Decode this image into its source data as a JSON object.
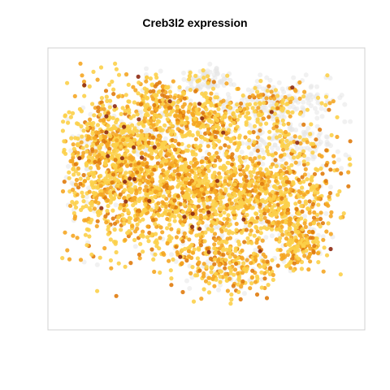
{
  "chart_data": {
    "type": "scatter",
    "title": "Creb3l2 expression",
    "xlabel": "",
    "ylabel": "",
    "grid": false,
    "legend": "none",
    "xlim": [
      0,
      100
    ],
    "ylim": [
      0,
      100
    ],
    "color_scale": {
      "zero": "#e6e6e6",
      "low": "#fcd04a",
      "mid": "#f5a623",
      "high": "#e07b0d",
      "max": "#8e2a12"
    },
    "clusters": [
      {
        "id": "left-mass",
        "cx": 20,
        "cy": 58,
        "sx": 9,
        "sy": 14,
        "n": 900,
        "expr_frac": 0.9
      },
      {
        "id": "center-mass",
        "cx": 42,
        "cy": 50,
        "sx": 10,
        "sy": 12,
        "n": 900,
        "expr_frac": 0.9
      },
      {
        "id": "right-mass",
        "cx": 70,
        "cy": 48,
        "sx": 11,
        "sy": 8,
        "n": 700,
        "expr_frac": 0.85
      },
      {
        "id": "bottom-center",
        "cx": 57,
        "cy": 22,
        "sx": 7,
        "sy": 5,
        "n": 300,
        "expr_frac": 0.85
      },
      {
        "id": "bottom-right",
        "cx": 81,
        "cy": 30,
        "sx": 4,
        "sy": 5,
        "n": 200,
        "expr_frac": 0.85
      },
      {
        "id": "top-center",
        "cx": 50,
        "cy": 76,
        "sx": 8,
        "sy": 4,
        "n": 300,
        "expr_frac": 0.85
      },
      {
        "id": "top-left-lobe",
        "cx": 34,
        "cy": 83,
        "sx": 5,
        "sy": 4,
        "n": 150,
        "expr_frac": 0.8
      },
      {
        "id": "top-right-grey",
        "cx": 72,
        "cy": 82,
        "sx": 9,
        "sy": 4,
        "n": 300,
        "expr_frac": 0.35
      },
      {
        "id": "top-grey",
        "cx": 50,
        "cy": 90,
        "sx": 4,
        "sy": 2,
        "n": 100,
        "expr_frac": 0.2
      },
      {
        "id": "right-grey",
        "cx": 77,
        "cy": 66,
        "sx": 9,
        "sy": 4,
        "n": 200,
        "expr_frac": 0.4
      },
      {
        "id": "left-grey",
        "cx": 23,
        "cy": 68,
        "sx": 8,
        "sy": 3,
        "n": 150,
        "expr_frac": 0.5
      }
    ]
  }
}
